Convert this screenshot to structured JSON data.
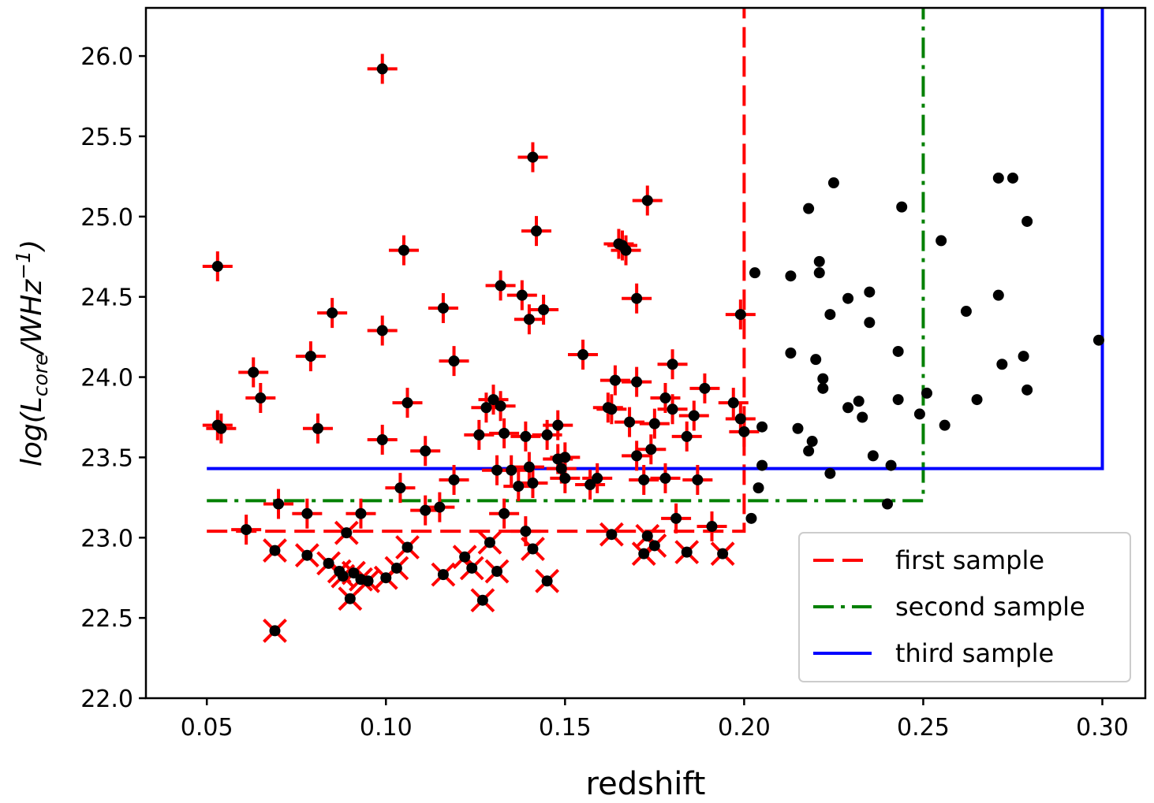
{
  "chart_data": {
    "type": "scatter",
    "xlabel": "redshift",
    "ylabel": {
      "prefix": "log(L",
      "sub": "core",
      "mid": "/WHz",
      "sup": "−1",
      "suffix": ")"
    },
    "xlim": [
      0.033,
      0.312
    ],
    "ylim": [
      22.0,
      26.3
    ],
    "xticks": [
      "0.05",
      "0.10",
      "0.15",
      "0.20",
      "0.25",
      "0.30"
    ],
    "xtick_values": [
      0.05,
      0.1,
      0.15,
      0.2,
      0.25,
      0.3
    ],
    "yticks": [
      "22.0",
      "22.5",
      "23.0",
      "23.5",
      "24.0",
      "24.5",
      "25.0",
      "25.5",
      "26.0"
    ],
    "ytick_values": [
      22.0,
      22.5,
      23.0,
      23.5,
      24.0,
      24.5,
      25.0,
      25.5,
      26.0
    ],
    "grid": false,
    "legend_position": "bottom-right",
    "colors": {
      "first": "#ff0000",
      "second": "#008000",
      "third": "#0000ff",
      "points": "#000000"
    },
    "samples": [
      {
        "name": "first sample",
        "style": "dashed",
        "color": "#ff0000",
        "z_max": 0.2,
        "logL_min": 23.04
      },
      {
        "name": "second sample",
        "style": "dashdot",
        "color": "#008000",
        "z_max": 0.25,
        "logL_min": 23.23
      },
      {
        "name": "third sample",
        "style": "solid",
        "color": "#0000ff",
        "z_max": 0.3,
        "logL_min": 23.43
      }
    ],
    "plus_points": [
      [
        0.053,
        24.69
      ],
      [
        0.053,
        23.7
      ],
      [
        0.054,
        23.68
      ],
      [
        0.061,
        23.05
      ],
      [
        0.063,
        24.03
      ],
      [
        0.065,
        23.87
      ],
      [
        0.07,
        23.21
      ],
      [
        0.078,
        23.15
      ],
      [
        0.079,
        24.13
      ],
      [
        0.081,
        23.68
      ],
      [
        0.085,
        24.4
      ],
      [
        0.093,
        23.15
      ],
      [
        0.099,
        25.92
      ],
      [
        0.099,
        24.29
      ],
      [
        0.099,
        23.61
      ],
      [
        0.104,
        23.31
      ],
      [
        0.105,
        24.79
      ],
      [
        0.106,
        23.84
      ],
      [
        0.111,
        23.54
      ],
      [
        0.111,
        23.17
      ],
      [
        0.115,
        23.19
      ],
      [
        0.116,
        24.43
      ],
      [
        0.119,
        24.1
      ],
      [
        0.119,
        23.36
      ],
      [
        0.126,
        23.64
      ],
      [
        0.128,
        23.81
      ],
      [
        0.13,
        23.86
      ],
      [
        0.131,
        23.42
      ],
      [
        0.132,
        24.57
      ],
      [
        0.132,
        23.82
      ],
      [
        0.133,
        23.65
      ],
      [
        0.133,
        23.15
      ],
      [
        0.135,
        23.42
      ],
      [
        0.137,
        23.32
      ],
      [
        0.138,
        24.51
      ],
      [
        0.139,
        23.63
      ],
      [
        0.139,
        23.04
      ],
      [
        0.14,
        24.36
      ],
      [
        0.14,
        23.44
      ],
      [
        0.141,
        25.37
      ],
      [
        0.141,
        23.34
      ],
      [
        0.142,
        24.91
      ],
      [
        0.144,
        24.42
      ],
      [
        0.145,
        23.64
      ],
      [
        0.148,
        23.7
      ],
      [
        0.148,
        23.49
      ],
      [
        0.149,
        23.43
      ],
      [
        0.15,
        23.5
      ],
      [
        0.15,
        23.37
      ],
      [
        0.155,
        24.14
      ],
      [
        0.157,
        23.33
      ],
      [
        0.159,
        23.37
      ],
      [
        0.162,
        23.81
      ],
      [
        0.163,
        23.8
      ],
      [
        0.164,
        23.98
      ],
      [
        0.165,
        24.83
      ],
      [
        0.166,
        24.82
      ],
      [
        0.167,
        24.79
      ],
      [
        0.168,
        23.72
      ],
      [
        0.17,
        24.49
      ],
      [
        0.17,
        23.97
      ],
      [
        0.17,
        23.51
      ],
      [
        0.172,
        23.36
      ],
      [
        0.173,
        25.1
      ],
      [
        0.174,
        23.55
      ],
      [
        0.175,
        23.71
      ],
      [
        0.178,
        23.87
      ],
      [
        0.178,
        23.37
      ],
      [
        0.18,
        23.8
      ],
      [
        0.18,
        24.08
      ],
      [
        0.181,
        23.12
      ],
      [
        0.184,
        23.63
      ],
      [
        0.186,
        23.76
      ],
      [
        0.187,
        23.36
      ],
      [
        0.189,
        23.93
      ],
      [
        0.191,
        23.07
      ],
      [
        0.197,
        23.84
      ],
      [
        0.199,
        24.39
      ],
      [
        0.199,
        23.74
      ],
      [
        0.2,
        23.66
      ]
    ],
    "x_points": [
      [
        0.069,
        22.92
      ],
      [
        0.069,
        22.42
      ],
      [
        0.078,
        22.89
      ],
      [
        0.084,
        22.84
      ],
      [
        0.087,
        22.79
      ],
      [
        0.088,
        22.76
      ],
      [
        0.089,
        23.03
      ],
      [
        0.09,
        22.62
      ],
      [
        0.091,
        22.78
      ],
      [
        0.093,
        22.74
      ],
      [
        0.095,
        22.73
      ],
      [
        0.1,
        22.75
      ],
      [
        0.103,
        22.81
      ],
      [
        0.106,
        22.94
      ],
      [
        0.116,
        22.77
      ],
      [
        0.122,
        22.88
      ],
      [
        0.124,
        22.81
      ],
      [
        0.127,
        22.61
      ],
      [
        0.129,
        22.97
      ],
      [
        0.131,
        22.79
      ],
      [
        0.141,
        22.93
      ],
      [
        0.145,
        22.73
      ],
      [
        0.163,
        23.02
      ],
      [
        0.172,
        22.9
      ],
      [
        0.173,
        23.01
      ],
      [
        0.175,
        22.95
      ],
      [
        0.184,
        22.91
      ],
      [
        0.194,
        22.9
      ]
    ],
    "dot_points": [
      [
        0.202,
        23.12
      ],
      [
        0.203,
        24.65
      ],
      [
        0.204,
        23.31
      ],
      [
        0.205,
        23.45
      ],
      [
        0.205,
        23.69
      ],
      [
        0.213,
        24.63
      ],
      [
        0.213,
        24.15
      ],
      [
        0.215,
        23.68
      ],
      [
        0.218,
        25.05
      ],
      [
        0.218,
        23.54
      ],
      [
        0.219,
        23.6
      ],
      [
        0.22,
        24.11
      ],
      [
        0.221,
        24.72
      ],
      [
        0.221,
        24.65
      ],
      [
        0.222,
        23.93
      ],
      [
        0.222,
        23.99
      ],
      [
        0.224,
        24.39
      ],
      [
        0.224,
        23.4
      ],
      [
        0.225,
        25.21
      ],
      [
        0.229,
        24.49
      ],
      [
        0.229,
        23.81
      ],
      [
        0.232,
        23.85
      ],
      [
        0.233,
        23.75
      ],
      [
        0.235,
        24.53
      ],
      [
        0.235,
        24.34
      ],
      [
        0.236,
        23.51
      ],
      [
        0.24,
        23.21
      ],
      [
        0.241,
        23.45
      ],
      [
        0.243,
        23.86
      ],
      [
        0.243,
        24.16
      ],
      [
        0.244,
        25.06
      ],
      [
        0.249,
        23.77
      ],
      [
        0.251,
        23.9
      ],
      [
        0.255,
        24.85
      ],
      [
        0.256,
        23.7
      ],
      [
        0.262,
        24.41
      ],
      [
        0.265,
        23.86
      ],
      [
        0.271,
        24.51
      ],
      [
        0.271,
        25.24
      ],
      [
        0.272,
        24.08
      ],
      [
        0.275,
        25.24
      ],
      [
        0.278,
        24.13
      ],
      [
        0.279,
        24.97
      ],
      [
        0.279,
        23.92
      ],
      [
        0.299,
        24.23
      ]
    ]
  }
}
